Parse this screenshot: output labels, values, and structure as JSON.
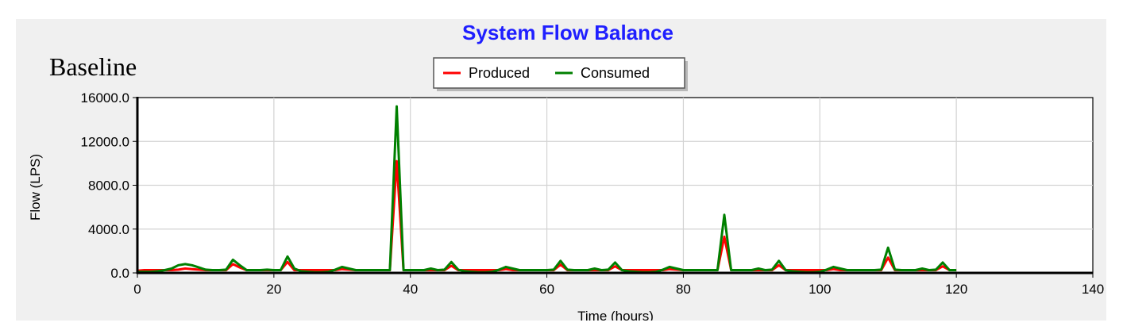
{
  "caption": "Baseline",
  "chart_data": {
    "type": "line",
    "title": "System Flow Balance",
    "xlabel": "Time (hours)",
    "ylabel": "Flow (LPS)",
    "xlim": [
      0,
      140
    ],
    "ylim": [
      0,
      16000
    ],
    "xticks": [
      "0",
      "20",
      "40",
      "60",
      "80",
      "100",
      "120",
      "140"
    ],
    "yticks": [
      "0.0",
      "4000.0",
      "8000.0",
      "12000.0",
      "16000.0"
    ],
    "grid": true,
    "legend": "top-center",
    "series": [
      {
        "name": "Produced",
        "color": "#ff0000",
        "points": [
          [
            0,
            200
          ],
          [
            1,
            250
          ],
          [
            2,
            250
          ],
          [
            3,
            250
          ],
          [
            4,
            250
          ],
          [
            5,
            250
          ],
          [
            6,
            300
          ],
          [
            7,
            400
          ],
          [
            8,
            350
          ],
          [
            9,
            300
          ],
          [
            10,
            250
          ],
          [
            11,
            250
          ],
          [
            12,
            250
          ],
          [
            13,
            250
          ],
          [
            14,
            800
          ],
          [
            15,
            500
          ],
          [
            16,
            250
          ],
          [
            17,
            250
          ],
          [
            18,
            250
          ],
          [
            19,
            250
          ],
          [
            20,
            250
          ],
          [
            21,
            250
          ],
          [
            22,
            1000
          ],
          [
            23,
            250
          ],
          [
            24,
            250
          ],
          [
            25,
            250
          ],
          [
            26,
            250
          ],
          [
            27,
            250
          ],
          [
            28,
            250
          ],
          [
            29,
            250
          ],
          [
            30,
            350
          ],
          [
            31,
            300
          ],
          [
            32,
            250
          ],
          [
            33,
            250
          ],
          [
            34,
            250
          ],
          [
            35,
            250
          ],
          [
            36,
            250
          ],
          [
            37,
            250
          ],
          [
            38,
            10200
          ],
          [
            39,
            250
          ],
          [
            40,
            250
          ],
          [
            41,
            250
          ],
          [
            42,
            250
          ],
          [
            43,
            250
          ],
          [
            44,
            250
          ],
          [
            45,
            250
          ],
          [
            46,
            650
          ],
          [
            47,
            250
          ],
          [
            48,
            250
          ],
          [
            49,
            250
          ],
          [
            50,
            250
          ],
          [
            51,
            250
          ],
          [
            52,
            250
          ],
          [
            53,
            250
          ],
          [
            54,
            350
          ],
          [
            55,
            250
          ],
          [
            56,
            250
          ],
          [
            57,
            250
          ],
          [
            58,
            250
          ],
          [
            59,
            250
          ],
          [
            60,
            250
          ],
          [
            61,
            250
          ],
          [
            62,
            750
          ],
          [
            63,
            250
          ],
          [
            64,
            250
          ],
          [
            65,
            250
          ],
          [
            66,
            250
          ],
          [
            67,
            250
          ],
          [
            68,
            250
          ],
          [
            69,
            250
          ],
          [
            70,
            600
          ],
          [
            71,
            250
          ],
          [
            72,
            250
          ],
          [
            73,
            250
          ],
          [
            74,
            250
          ],
          [
            75,
            250
          ],
          [
            76,
            250
          ],
          [
            77,
            250
          ],
          [
            78,
            350
          ],
          [
            79,
            300
          ],
          [
            80,
            250
          ],
          [
            81,
            250
          ],
          [
            82,
            250
          ],
          [
            83,
            250
          ],
          [
            84,
            250
          ],
          [
            85,
            250
          ],
          [
            86,
            3300
          ],
          [
            87,
            250
          ],
          [
            88,
            250
          ],
          [
            89,
            250
          ],
          [
            90,
            250
          ],
          [
            91,
            250
          ],
          [
            92,
            250
          ],
          [
            93,
            250
          ],
          [
            94,
            700
          ],
          [
            95,
            250
          ],
          [
            96,
            250
          ],
          [
            97,
            250
          ],
          [
            98,
            250
          ],
          [
            99,
            250
          ],
          [
            100,
            250
          ],
          [
            101,
            250
          ],
          [
            102,
            350
          ],
          [
            103,
            250
          ],
          [
            104,
            250
          ],
          [
            105,
            250
          ],
          [
            106,
            250
          ],
          [
            107,
            250
          ],
          [
            108,
            250
          ],
          [
            109,
            250
          ],
          [
            110,
            1400
          ],
          [
            111,
            250
          ],
          [
            112,
            250
          ],
          [
            113,
            250
          ],
          [
            114,
            250
          ],
          [
            115,
            250
          ],
          [
            116,
            250
          ],
          [
            117,
            250
          ],
          [
            118,
            600
          ],
          [
            119,
            250
          ],
          [
            120,
            250
          ]
        ]
      },
      {
        "name": "Consumed",
        "color": "#008000",
        "points": [
          [
            0,
            100
          ],
          [
            1,
            100
          ],
          [
            2,
            100
          ],
          [
            3,
            150
          ],
          [
            4,
            250
          ],
          [
            5,
            400
          ],
          [
            6,
            700
          ],
          [
            7,
            800
          ],
          [
            8,
            700
          ],
          [
            9,
            500
          ],
          [
            10,
            300
          ],
          [
            11,
            250
          ],
          [
            12,
            250
          ],
          [
            13,
            300
          ],
          [
            14,
            1200
          ],
          [
            15,
            700
          ],
          [
            16,
            250
          ],
          [
            17,
            250
          ],
          [
            18,
            250
          ],
          [
            19,
            300
          ],
          [
            20,
            250
          ],
          [
            21,
            250
          ],
          [
            22,
            1500
          ],
          [
            23,
            400
          ],
          [
            24,
            150
          ],
          [
            25,
            100
          ],
          [
            26,
            50
          ],
          [
            27,
            50
          ],
          [
            28,
            100
          ],
          [
            29,
            300
          ],
          [
            30,
            550
          ],
          [
            31,
            400
          ],
          [
            32,
            250
          ],
          [
            33,
            250
          ],
          [
            34,
            250
          ],
          [
            35,
            250
          ],
          [
            36,
            250
          ],
          [
            37,
            250
          ],
          [
            38,
            15200
          ],
          [
            39,
            250
          ],
          [
            40,
            250
          ],
          [
            41,
            250
          ],
          [
            42,
            250
          ],
          [
            43,
            400
          ],
          [
            44,
            250
          ],
          [
            45,
            300
          ],
          [
            46,
            1000
          ],
          [
            47,
            300
          ],
          [
            48,
            150
          ],
          [
            49,
            100
          ],
          [
            50,
            50
          ],
          [
            51,
            50
          ],
          [
            52,
            100
          ],
          [
            53,
            300
          ],
          [
            54,
            550
          ],
          [
            55,
            400
          ],
          [
            56,
            250
          ],
          [
            57,
            250
          ],
          [
            58,
            250
          ],
          [
            59,
            250
          ],
          [
            60,
            250
          ],
          [
            61,
            300
          ],
          [
            62,
            1100
          ],
          [
            63,
            300
          ],
          [
            64,
            250
          ],
          [
            65,
            250
          ],
          [
            66,
            250
          ],
          [
            67,
            400
          ],
          [
            68,
            250
          ],
          [
            69,
            300
          ],
          [
            70,
            950
          ],
          [
            71,
            250
          ],
          [
            72,
            150
          ],
          [
            73,
            100
          ],
          [
            74,
            50
          ],
          [
            75,
            50
          ],
          [
            76,
            100
          ],
          [
            77,
            300
          ],
          [
            78,
            550
          ],
          [
            79,
            400
          ],
          [
            80,
            250
          ],
          [
            81,
            250
          ],
          [
            82,
            250
          ],
          [
            83,
            250
          ],
          [
            84,
            250
          ],
          [
            85,
            250
          ],
          [
            86,
            5300
          ],
          [
            87,
            250
          ],
          [
            88,
            250
          ],
          [
            89,
            250
          ],
          [
            90,
            250
          ],
          [
            91,
            400
          ],
          [
            92,
            250
          ],
          [
            93,
            300
          ],
          [
            94,
            1100
          ],
          [
            95,
            250
          ],
          [
            96,
            150
          ],
          [
            97,
            100
          ],
          [
            98,
            50
          ],
          [
            99,
            50
          ],
          [
            100,
            100
          ],
          [
            101,
            300
          ],
          [
            102,
            550
          ],
          [
            103,
            400
          ],
          [
            104,
            250
          ],
          [
            105,
            250
          ],
          [
            106,
            250
          ],
          [
            107,
            250
          ],
          [
            108,
            250
          ],
          [
            109,
            300
          ],
          [
            110,
            2300
          ],
          [
            111,
            300
          ],
          [
            112,
            250
          ],
          [
            113,
            250
          ],
          [
            114,
            250
          ],
          [
            115,
            400
          ],
          [
            116,
            250
          ],
          [
            117,
            300
          ],
          [
            118,
            950
          ],
          [
            119,
            250
          ],
          [
            120,
            250
          ]
        ]
      }
    ]
  }
}
